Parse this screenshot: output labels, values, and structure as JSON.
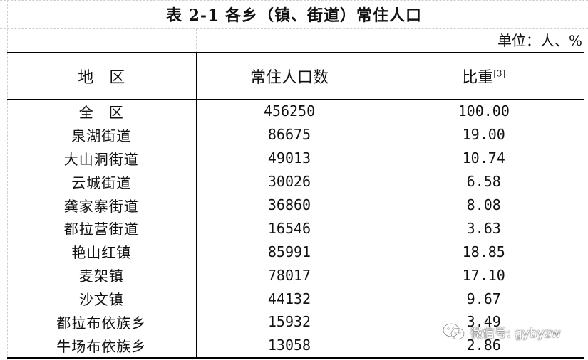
{
  "title": "表 2-1  各乡（镇、街道）常住人口",
  "unit": "单位：人、%",
  "headers": {
    "region": "地　区",
    "population": "常住人口数",
    "share": "比重",
    "share_note": "[3]"
  },
  "rows": [
    {
      "region": "全　区",
      "population": "456250",
      "share": "100.00"
    },
    {
      "region": "泉湖街道",
      "population": "86675",
      "share": "19.00"
    },
    {
      "region": "大山洞街道",
      "population": "49013",
      "share": "10.74"
    },
    {
      "region": "云城街道",
      "population": "30026",
      "share": "6.58"
    },
    {
      "region": "龚家寨街道",
      "population": "36860",
      "share": "8.08"
    },
    {
      "region": "都拉营街道",
      "population": "16546",
      "share": "3.63"
    },
    {
      "region": "艳山红镇",
      "population": "85991",
      "share": "18.85"
    },
    {
      "region": "麦架镇",
      "population": "78017",
      "share": "17.10"
    },
    {
      "region": "沙文镇",
      "population": "44132",
      "share": "9.67"
    },
    {
      "region": "都拉布依族乡",
      "population": "15932",
      "share": "3.49"
    },
    {
      "region": "牛场布依族乡",
      "population": "13058",
      "share": "2.86"
    }
  ],
  "watermark": {
    "icon": "wechat-icon",
    "text": "微信号: gybyzw"
  }
}
